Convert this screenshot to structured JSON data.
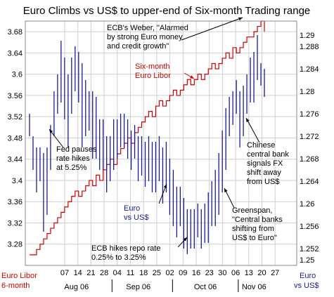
{
  "chart_data": {
    "type": "line",
    "title": "Euro Climbs vs US$ to upper-end of Six-month Trading range",
    "x_ticks": [
      "07",
      "14",
      "21",
      "28",
      "04",
      "11",
      "18",
      "25",
      "02",
      "09",
      "16",
      "23",
      "30",
      "06",
      "13",
      "20",
      "27"
    ],
    "months": [
      "Aug 06",
      "Sep 06",
      "Oct 06",
      "Nov 06"
    ],
    "left_axis": {
      "ylim": [
        3.24,
        3.7
      ],
      "ticks": [
        "3.68",
        "3.64",
        "3.6",
        "3.56",
        "3.52",
        "3.48",
        "3.44",
        "3.4",
        "3.36",
        "3.32",
        "3.28"
      ],
      "label": "Euro Libor 6-month",
      "label_lines": [
        "Euro Libor",
        "6-month"
      ]
    },
    "right_axis": {
      "ylim": [
        1.249,
        1.2925
      ],
      "ticks": [
        "1.29",
        "1.288",
        "1.284",
        "1.28",
        "1.276",
        "1.272",
        "1.268",
        "1.264",
        "1.26",
        "1.256",
        "1.252",
        "1.25"
      ],
      "label": "Euro vs US$",
      "label_lines": [
        "Euro",
        "vs US$"
      ]
    },
    "grid": true,
    "series": [
      {
        "name": "Six-month Euro Libor",
        "axis": "left",
        "color": "#cc0000",
        "x": [
          0,
          1,
          2,
          3,
          4,
          5,
          6,
          7,
          8,
          9,
          10,
          11,
          12,
          13,
          14,
          15,
          16,
          17,
          18,
          19,
          20,
          21,
          22,
          23,
          24,
          25,
          26,
          27,
          28,
          29,
          30,
          31,
          32,
          33,
          34,
          35,
          36,
          37,
          38,
          39,
          40,
          41,
          42,
          43,
          44,
          45,
          46,
          47,
          48,
          49,
          50,
          51,
          52,
          53,
          54,
          55,
          56,
          57,
          58,
          59,
          60,
          61,
          62,
          63,
          64,
          65,
          66,
          67
        ],
        "values": [
          3.26,
          3.26,
          3.27,
          3.28,
          3.29,
          3.3,
          3.31,
          3.32,
          3.33,
          3.34,
          3.35,
          3.36,
          3.37,
          3.38,
          3.37,
          3.38,
          3.39,
          3.4,
          3.39,
          3.41,
          3.4,
          3.42,
          3.43,
          3.44,
          3.43,
          3.45,
          3.46,
          3.47,
          3.48,
          3.47,
          3.49,
          3.5,
          3.51,
          3.52,
          3.53,
          3.52,
          3.54,
          3.55,
          3.54,
          3.55,
          3.56,
          3.57,
          3.56,
          3.57,
          3.58,
          3.59,
          3.58,
          3.59,
          3.6,
          3.59,
          3.6,
          3.61,
          3.62,
          3.61,
          3.62,
          3.63,
          3.64,
          3.63,
          3.65,
          3.64,
          3.65,
          3.66,
          3.67,
          3.67,
          3.68,
          3.69,
          3.7,
          3.68
        ]
      },
      {
        "name": "Euro vs US$",
        "axis": "right",
        "color": "#1a1a99",
        "type": "hilo",
        "x": [
          0,
          1,
          2,
          3,
          4,
          5,
          6,
          7,
          8,
          9,
          10,
          11,
          12,
          13,
          14,
          15,
          16,
          17,
          18,
          19,
          20,
          21,
          22,
          23,
          24,
          25,
          26,
          27,
          28,
          29,
          30,
          31,
          32,
          33,
          34,
          35,
          36,
          37,
          38,
          39,
          40,
          41,
          42,
          43,
          44,
          45,
          46,
          47,
          48,
          49,
          50,
          51,
          52,
          53,
          54,
          55,
          56,
          57,
          58,
          59,
          60,
          61,
          62,
          63,
          64,
          65,
          66,
          67
        ],
        "low": [
          1.272,
          1.266,
          1.262,
          1.264,
          1.255,
          1.258,
          1.266,
          1.272,
          1.276,
          1.278,
          1.275,
          1.27,
          1.276,
          1.28,
          1.278,
          1.27,
          1.272,
          1.273,
          1.268,
          1.268,
          1.266,
          1.266,
          1.262,
          1.264,
          1.266,
          1.268,
          1.27,
          1.27,
          1.268,
          1.266,
          1.268,
          1.264,
          1.265,
          1.263,
          1.264,
          1.262,
          1.262,
          1.264,
          1.26,
          1.262,
          1.258,
          1.256,
          1.254,
          1.256,
          1.252,
          1.251,
          1.252,
          1.252,
          1.254,
          1.252,
          1.253,
          1.253,
          1.256,
          1.256,
          1.258,
          1.262,
          1.266,
          1.272,
          1.274,
          1.276,
          1.27,
          1.272,
          1.276,
          1.278,
          1.278,
          1.282,
          1.281,
          1.279
        ],
        "high": [
          1.276,
          1.272,
          1.27,
          1.27,
          1.269,
          1.27,
          1.274,
          1.28,
          1.283,
          1.289,
          1.286,
          1.283,
          1.286,
          1.288,
          1.287,
          1.285,
          1.282,
          1.28,
          1.28,
          1.279,
          1.275,
          1.275,
          1.272,
          1.272,
          1.275,
          1.275,
          1.276,
          1.276,
          1.275,
          1.273,
          1.274,
          1.272,
          1.272,
          1.271,
          1.272,
          1.271,
          1.271,
          1.272,
          1.27,
          1.271,
          1.268,
          1.266,
          1.263,
          1.263,
          1.261,
          1.259,
          1.259,
          1.259,
          1.26,
          1.259,
          1.26,
          1.262,
          1.264,
          1.266,
          1.269,
          1.273,
          1.277,
          1.279,
          1.28,
          1.282,
          1.28,
          1.281,
          1.283,
          1.286,
          1.287,
          1.29,
          1.285,
          1.284
        ]
      }
    ],
    "annotations": [
      {
        "id": "ecb-weber",
        "lines": [
          "ECB's Weber, \"Alarmed",
          "by strong Euro money",
          "and credit growth\""
        ]
      },
      {
        "id": "euro-libor",
        "lines": [
          "Six-month",
          "Euro Libor"
        ]
      },
      {
        "id": "fed-pauses",
        "lines": [
          "Fed pauses",
          "rate hikes",
          "at 5.25%"
        ]
      },
      {
        "id": "euro-vs-usd",
        "lines": [
          "Euro",
          "vs US$"
        ]
      },
      {
        "id": "ecb-hikes",
        "lines": [
          "ECB hikes repo rate",
          "0.25% to 3.25%"
        ]
      },
      {
        "id": "greenspan",
        "lines": [
          "Greenspan,",
          "\"Central banks",
          "shifting from",
          "US$ to Euro\""
        ]
      },
      {
        "id": "chinese-bank",
        "lines": [
          "Chinese",
          "central bank",
          "signals FX",
          "shift away",
          "from US$"
        ]
      }
    ]
  }
}
